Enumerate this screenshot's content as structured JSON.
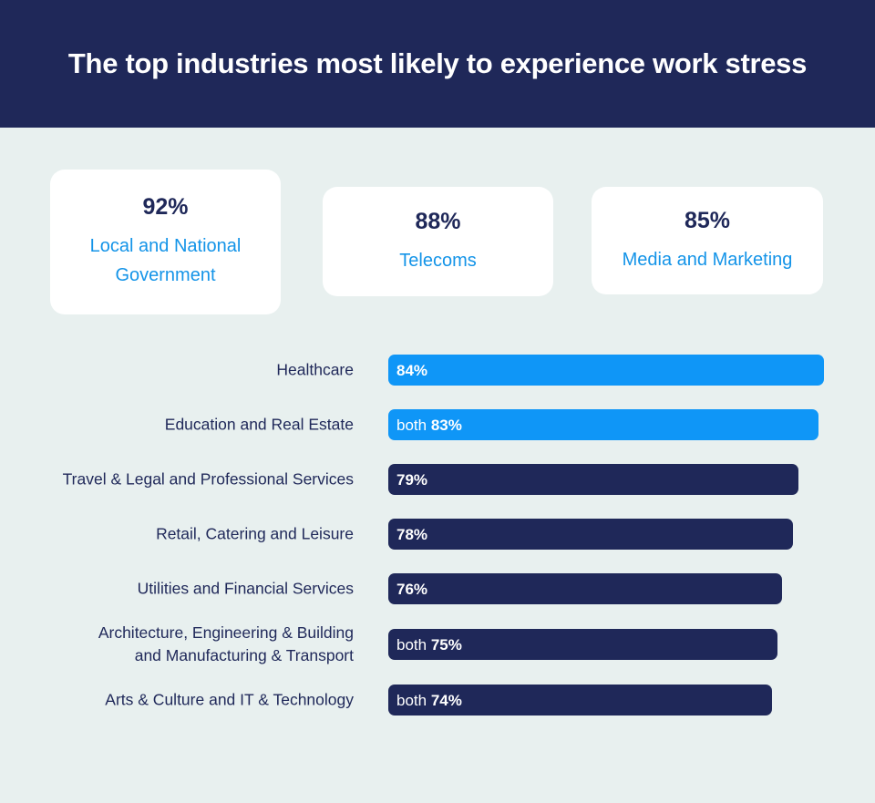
{
  "chart_data": {
    "type": "bar",
    "orientation": "horizontal",
    "title": "The top industries most likely to experience work stress",
    "highlights": [
      {
        "value": "92%",
        "label": "Local and National\nGovernment"
      },
      {
        "value": "88%",
        "label": "Telecoms"
      },
      {
        "value": "85%",
        "label": "Media and Marketing"
      }
    ],
    "categories": [
      "Healthcare",
      "Education and Real Estate",
      "Travel & Legal and Professional Services",
      "Retail, Catering and Leisure",
      "Utilities and Financial Services",
      "Architecture, Engineering & Building\nand Manufacturing & Transport",
      "Arts & Culture and IT & Technology"
    ],
    "values": [
      84,
      83,
      79,
      78,
      76,
      75,
      74
    ],
    "value_labels": [
      "84%",
      "both 83%",
      "79%",
      "78%",
      "76%",
      "both 75%",
      "both 74%"
    ],
    "colors": [
      "#0f96f7",
      "#0f96f7",
      "#1f2859",
      "#1f2859",
      "#1f2859",
      "#1f2859",
      "#1f2859"
    ]
  }
}
